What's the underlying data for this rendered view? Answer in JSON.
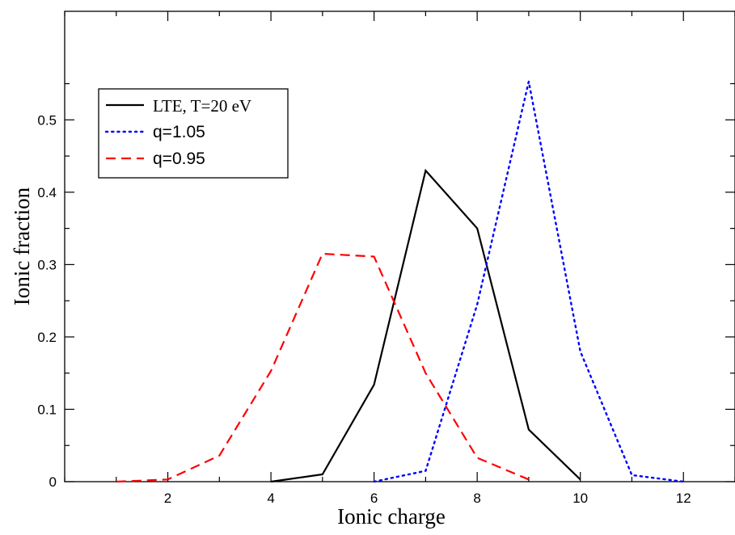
{
  "chart_data": {
    "type": "line",
    "title": "",
    "xlabel": "Ionic charge",
    "ylabel": "Ionic fraction",
    "xlim": [
      0,
      13
    ],
    "ylim": [
      0,
      0.65
    ],
    "x_ticks": [
      2,
      4,
      6,
      8,
      10,
      12
    ],
    "x_tick_labels": [
      "2",
      "4",
      "6",
      "8",
      "10",
      "12"
    ],
    "y_ticks": [
      0,
      0.1,
      0.2,
      0.3,
      0.4,
      0.5
    ],
    "y_tick_labels": [
      "0",
      "0.1",
      "0.2",
      "0.3",
      "0.4",
      "0.5"
    ],
    "grid": false,
    "legend_position": "top-left",
    "series": [
      {
        "name": "LTE, T=20 eV",
        "color": "#000000",
        "style": "solid",
        "x": [
          4,
          5,
          6,
          7,
          8,
          9,
          10
        ],
        "y": [
          0.0,
          0.01,
          0.134,
          0.43,
          0.35,
          0.072,
          0.003
        ]
      },
      {
        "name": "q=1.05",
        "color": "#0000ff",
        "style": "dotted",
        "x": [
          6,
          7,
          8,
          9,
          10,
          11,
          12
        ],
        "y": [
          0.0,
          0.015,
          0.245,
          0.553,
          0.18,
          0.009,
          0.0
        ]
      },
      {
        "name": "q=0.95",
        "color": "#ff0000",
        "style": "dashed",
        "x": [
          1,
          2,
          3,
          4,
          5,
          6,
          7,
          8,
          9
        ],
        "y": [
          0.0,
          0.003,
          0.036,
          0.153,
          0.315,
          0.311,
          0.15,
          0.033,
          0.003
        ]
      }
    ]
  }
}
